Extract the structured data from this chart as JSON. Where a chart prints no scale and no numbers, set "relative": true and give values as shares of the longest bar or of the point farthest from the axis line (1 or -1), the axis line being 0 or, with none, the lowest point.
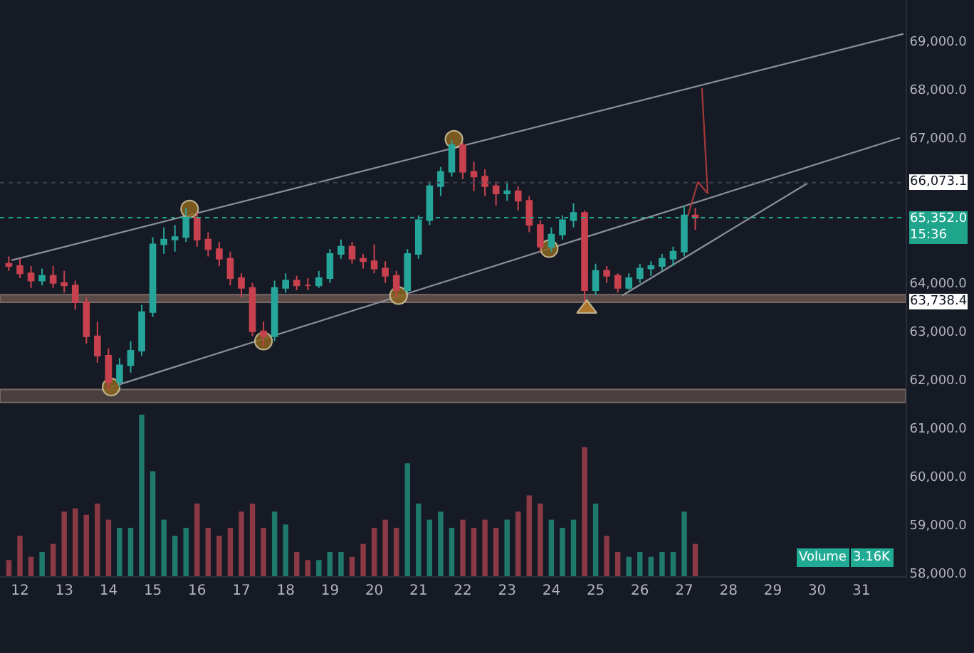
{
  "chart_data": [
    {
      "type": "candlestick",
      "x": [
        11.75,
        12.0,
        12.25,
        12.5,
        12.75,
        13.0,
        13.25,
        13.5,
        13.75,
        14.0,
        14.25,
        14.5,
        14.75,
        15.0,
        15.25,
        15.5,
        15.75,
        16.0,
        16.25,
        16.5,
        16.75,
        17.0,
        17.25,
        17.5,
        17.75,
        18.0,
        18.25,
        18.5,
        18.75,
        19.0,
        19.25,
        19.5,
        19.75,
        20.0,
        20.25,
        20.5,
        20.75,
        21.0,
        21.25,
        21.5,
        21.75,
        22.0,
        22.25,
        22.5,
        22.75,
        23.0,
        23.25,
        23.5,
        23.75,
        24.0,
        24.25,
        24.5,
        24.75,
        25.0,
        25.25,
        25.5,
        25.75,
        26.0,
        26.25,
        26.5,
        26.75,
        27.0,
        27.25
      ],
      "ohlc": [
        [
          64400,
          64550,
          64250,
          64350
        ],
        [
          64350,
          64500,
          64100,
          64200
        ],
        [
          64200,
          64350,
          63900,
          64050
        ],
        [
          64050,
          64300,
          63950,
          64150
        ],
        [
          64150,
          64350,
          63900,
          64000
        ],
        [
          64000,
          64250,
          63800,
          63950
        ],
        [
          63950,
          64050,
          63450,
          63600
        ],
        [
          63600,
          63700,
          62750,
          62900
        ],
        [
          62900,
          63200,
          62350,
          62500
        ],
        [
          62500,
          62650,
          61800,
          61950
        ],
        [
          61950,
          62450,
          61850,
          62300
        ],
        [
          62300,
          62800,
          62150,
          62600
        ],
        [
          62600,
          63550,
          62500,
          63400
        ],
        [
          63400,
          64950,
          63300,
          64800
        ],
        [
          64800,
          65150,
          64600,
          64900
        ],
        [
          64900,
          65200,
          64650,
          64950
        ],
        [
          64950,
          65550,
          64850,
          65350
        ],
        [
          65350,
          65450,
          64750,
          64900
        ],
        [
          64900,
          65050,
          64550,
          64700
        ],
        [
          64700,
          64850,
          64350,
          64500
        ],
        [
          64500,
          64650,
          63950,
          64100
        ],
        [
          64100,
          64200,
          63700,
          63900
        ],
        [
          63900,
          64000,
          62900,
          63000
        ],
        [
          63000,
          63200,
          62700,
          62900
        ],
        [
          62900,
          64050,
          62800,
          63900
        ],
        [
          63900,
          64200,
          63800,
          64050
        ],
        [
          64050,
          64150,
          63850,
          63950
        ],
        [
          63950,
          64100,
          63850,
          63950
        ],
        [
          63950,
          64250,
          63900,
          64100
        ],
        [
          64100,
          64700,
          64000,
          64600
        ],
        [
          64600,
          64900,
          64500,
          64750
        ],
        [
          64750,
          64850,
          64400,
          64500
        ],
        [
          64500,
          64600,
          64300,
          64450
        ],
        [
          64450,
          64800,
          64200,
          64300
        ],
        [
          64300,
          64450,
          64000,
          64150
        ],
        [
          64150,
          64250,
          63700,
          63850
        ],
        [
          63850,
          64700,
          63800,
          64600
        ],
        [
          64600,
          65400,
          64500,
          65300
        ],
        [
          65300,
          66100,
          65200,
          66000
        ],
        [
          66000,
          66400,
          65800,
          66300
        ],
        [
          66300,
          66950,
          66200,
          66850
        ],
        [
          66850,
          66900,
          66150,
          66300
        ],
        [
          66300,
          66500,
          65900,
          66200
        ],
        [
          66200,
          66350,
          65800,
          66000
        ],
        [
          66000,
          66100,
          65600,
          65850
        ],
        [
          65850,
          66100,
          65700,
          65900
        ],
        [
          65900,
          66000,
          65500,
          65700
        ],
        [
          65700,
          65800,
          65050,
          65200
        ],
        [
          65200,
          65300,
          64650,
          64750
        ],
        [
          64750,
          65150,
          64650,
          65000
        ],
        [
          65000,
          65400,
          64900,
          65300
        ],
        [
          65300,
          65650,
          65150,
          65450
        ],
        [
          65450,
          65500,
          63600,
          63850
        ],
        [
          63850,
          64400,
          63750,
          64250
        ],
        [
          64250,
          64350,
          64000,
          64150
        ],
        [
          64150,
          64200,
          63800,
          63900
        ],
        [
          63900,
          64200,
          63850,
          64100
        ],
        [
          64100,
          64400,
          64000,
          64300
        ],
        [
          64300,
          64450,
          64150,
          64350
        ],
        [
          64350,
          64600,
          64250,
          64500
        ],
        [
          64500,
          64750,
          64350,
          64650
        ],
        [
          64650,
          65600,
          64550,
          65400
        ],
        [
          65400,
          65550,
          65100,
          65352
        ]
      ],
      "series": [
        {
          "type": "line",
          "color": "#8a8f98",
          "x": [
            11.81,
            31.95
          ],
          "values": [
            64470,
            69150
          ]
        },
        {
          "type": "line",
          "color": "#8a8f98",
          "x": [
            14.06,
            31.87
          ],
          "values": [
            61850,
            67000
          ]
        },
        {
          "type": "line",
          "color": "#8a8f98",
          "x": [
            25.6,
            29.78
          ],
          "values": [
            63740,
            66060
          ]
        },
        {
          "type": "line",
          "color": "#a33a3a",
          "x": [
            27.08,
            27.31,
            27.53,
            27.4
          ],
          "values": [
            65380,
            66090,
            65850,
            68030
          ]
        },
        {
          "type": "scatter",
          "marker": "circle",
          "color": "#8b6420",
          "x": [
            14.06,
            15.83,
            17.5,
            20.55,
            21.8,
            23.95
          ],
          "values": [
            61850,
            65530,
            62800,
            63740,
            66970,
            64710
          ]
        },
        {
          "type": "scatter",
          "marker": "triangle",
          "color": "#c8862e",
          "x": [
            24.8
          ],
          "values": [
            63470
          ]
        }
      ],
      "bands": [
        {
          "axis": "y",
          "from": 63600,
          "to": 63760,
          "color": "#5a4a48",
          "label": "63,738.4"
        },
        {
          "axis": "y",
          "from": 61530,
          "to": 61800,
          "color": "#4a3f40"
        }
      ],
      "ref_lines": [
        {
          "axis": "y",
          "value": 65352.0,
          "label": "65,352.0\n15:36",
          "line_style": "dotted",
          "color": "#1fa58c"
        },
        {
          "axis": "y",
          "value": 66073.1,
          "label": "66,073.1",
          "line_style": "dotted",
          "color": "#3c414d"
        }
      ],
      "xlim": [
        11.55,
        32.0
      ],
      "xticks": [
        12,
        13,
        14,
        15,
        16,
        17,
        18,
        19,
        20,
        21,
        22,
        23,
        24,
        25,
        26,
        27,
        28,
        29,
        30,
        31
      ],
      "ylim": [
        57940,
        69850
      ],
      "yticks": [
        {
          "value": 58000,
          "label": "58,000.0"
        },
        {
          "value": 59000,
          "label": "59,000.0"
        },
        {
          "value": 60000,
          "label": "60,000.0"
        },
        {
          "value": 61000,
          "label": "61,000.0"
        },
        {
          "value": 62000,
          "label": "62,000.0"
        },
        {
          "value": 63000,
          "label": "63,000.0"
        },
        {
          "value": 64000,
          "label": "64,000.0"
        },
        {
          "value": 67000,
          "label": "67,000.0"
        },
        {
          "value": 68000,
          "label": "68,000.0"
        },
        {
          "value": 69000,
          "label": "69,000.0"
        }
      ]
    },
    {
      "type": "bar",
      "relative": true,
      "tick_labels": false,
      "xlim": [
        11.55,
        32.0
      ],
      "x": [
        11.75,
        12.0,
        12.25,
        12.5,
        12.75,
        13.0,
        13.25,
        13.5,
        13.75,
        14.0,
        14.25,
        14.5,
        14.75,
        15.0,
        15.25,
        15.5,
        15.75,
        16.0,
        16.25,
        16.5,
        16.75,
        17.0,
        17.25,
        17.5,
        17.75,
        18.0,
        18.25,
        18.5,
        18.75,
        19.0,
        19.25,
        19.5,
        19.75,
        20.0,
        20.25,
        20.5,
        20.75,
        21.0,
        21.25,
        21.5,
        21.75,
        22.0,
        22.25,
        22.5,
        22.75,
        23.0,
        23.25,
        23.5,
        23.75,
        24.0,
        24.25,
        24.5,
        24.75,
        25.0,
        25.25,
        25.5,
        25.75,
        26.0,
        26.25,
        26.5,
        26.75,
        27.0,
        27.25
      ],
      "values": [
        0.1,
        0.25,
        0.12,
        0.15,
        0.2,
        0.4,
        0.42,
        0.38,
        0.45,
        0.35,
        0.3,
        0.3,
        1.0,
        0.65,
        0.35,
        0.25,
        0.3,
        0.45,
        0.3,
        0.25,
        0.3,
        0.4,
        0.45,
        0.3,
        0.4,
        0.32,
        0.15,
        0.1,
        0.1,
        0.15,
        0.15,
        0.12,
        0.2,
        0.3,
        0.35,
        0.3,
        0.7,
        0.45,
        0.35,
        0.4,
        0.3,
        0.35,
        0.3,
        0.35,
        0.3,
        0.35,
        0.4,
        0.5,
        0.45,
        0.35,
        0.3,
        0.35,
        0.8,
        0.45,
        0.25,
        0.15,
        0.12,
        0.15,
        0.12,
        0.15,
        0.15,
        0.4,
        0.2
      ],
      "colors": [
        "#8b3a45",
        "#8b3a45",
        "#8b3a45",
        "#1f7a6c",
        "#8b3a45",
        "#8b3a45",
        "#8b3a45",
        "#8b3a45",
        "#8b3a45",
        "#8b3a45",
        "#1f7a6c",
        "#1f7a6c",
        "#1f7a6c",
        "#1f7a6c",
        "#1f7a6c",
        "#1f7a6c",
        "#1f7a6c",
        "#8b3a45",
        "#8b3a45",
        "#8b3a45",
        "#8b3a45",
        "#8b3a45",
        "#8b3a45",
        "#8b3a45",
        "#1f7a6c",
        "#1f7a6c",
        "#8b3a45",
        "#8b3a45",
        "#1f7a6c",
        "#1f7a6c",
        "#1f7a6c",
        "#8b3a45",
        "#8b3a45",
        "#8b3a45",
        "#8b3a45",
        "#8b3a45",
        "#1f7a6c",
        "#1f7a6c",
        "#1f7a6c",
        "#1f7a6c",
        "#1f7a6c",
        "#8b3a45",
        "#8b3a45",
        "#8b3a45",
        "#8b3a45",
        "#1f7a6c",
        "#8b3a45",
        "#8b3a45",
        "#8b3a45",
        "#1f7a6c",
        "#1f7a6c",
        "#1f7a6c",
        "#8b3a45",
        "#1f7a6c",
        "#8b3a45",
        "#8b3a45",
        "#1f7a6c",
        "#1f7a6c",
        "#1f7a6c",
        "#1f7a6c",
        "#1f7a6c",
        "#1f7a6c",
        "#8b3a45"
      ],
      "annotations": [
        "Volume",
        "3.16K"
      ]
    }
  ]
}
